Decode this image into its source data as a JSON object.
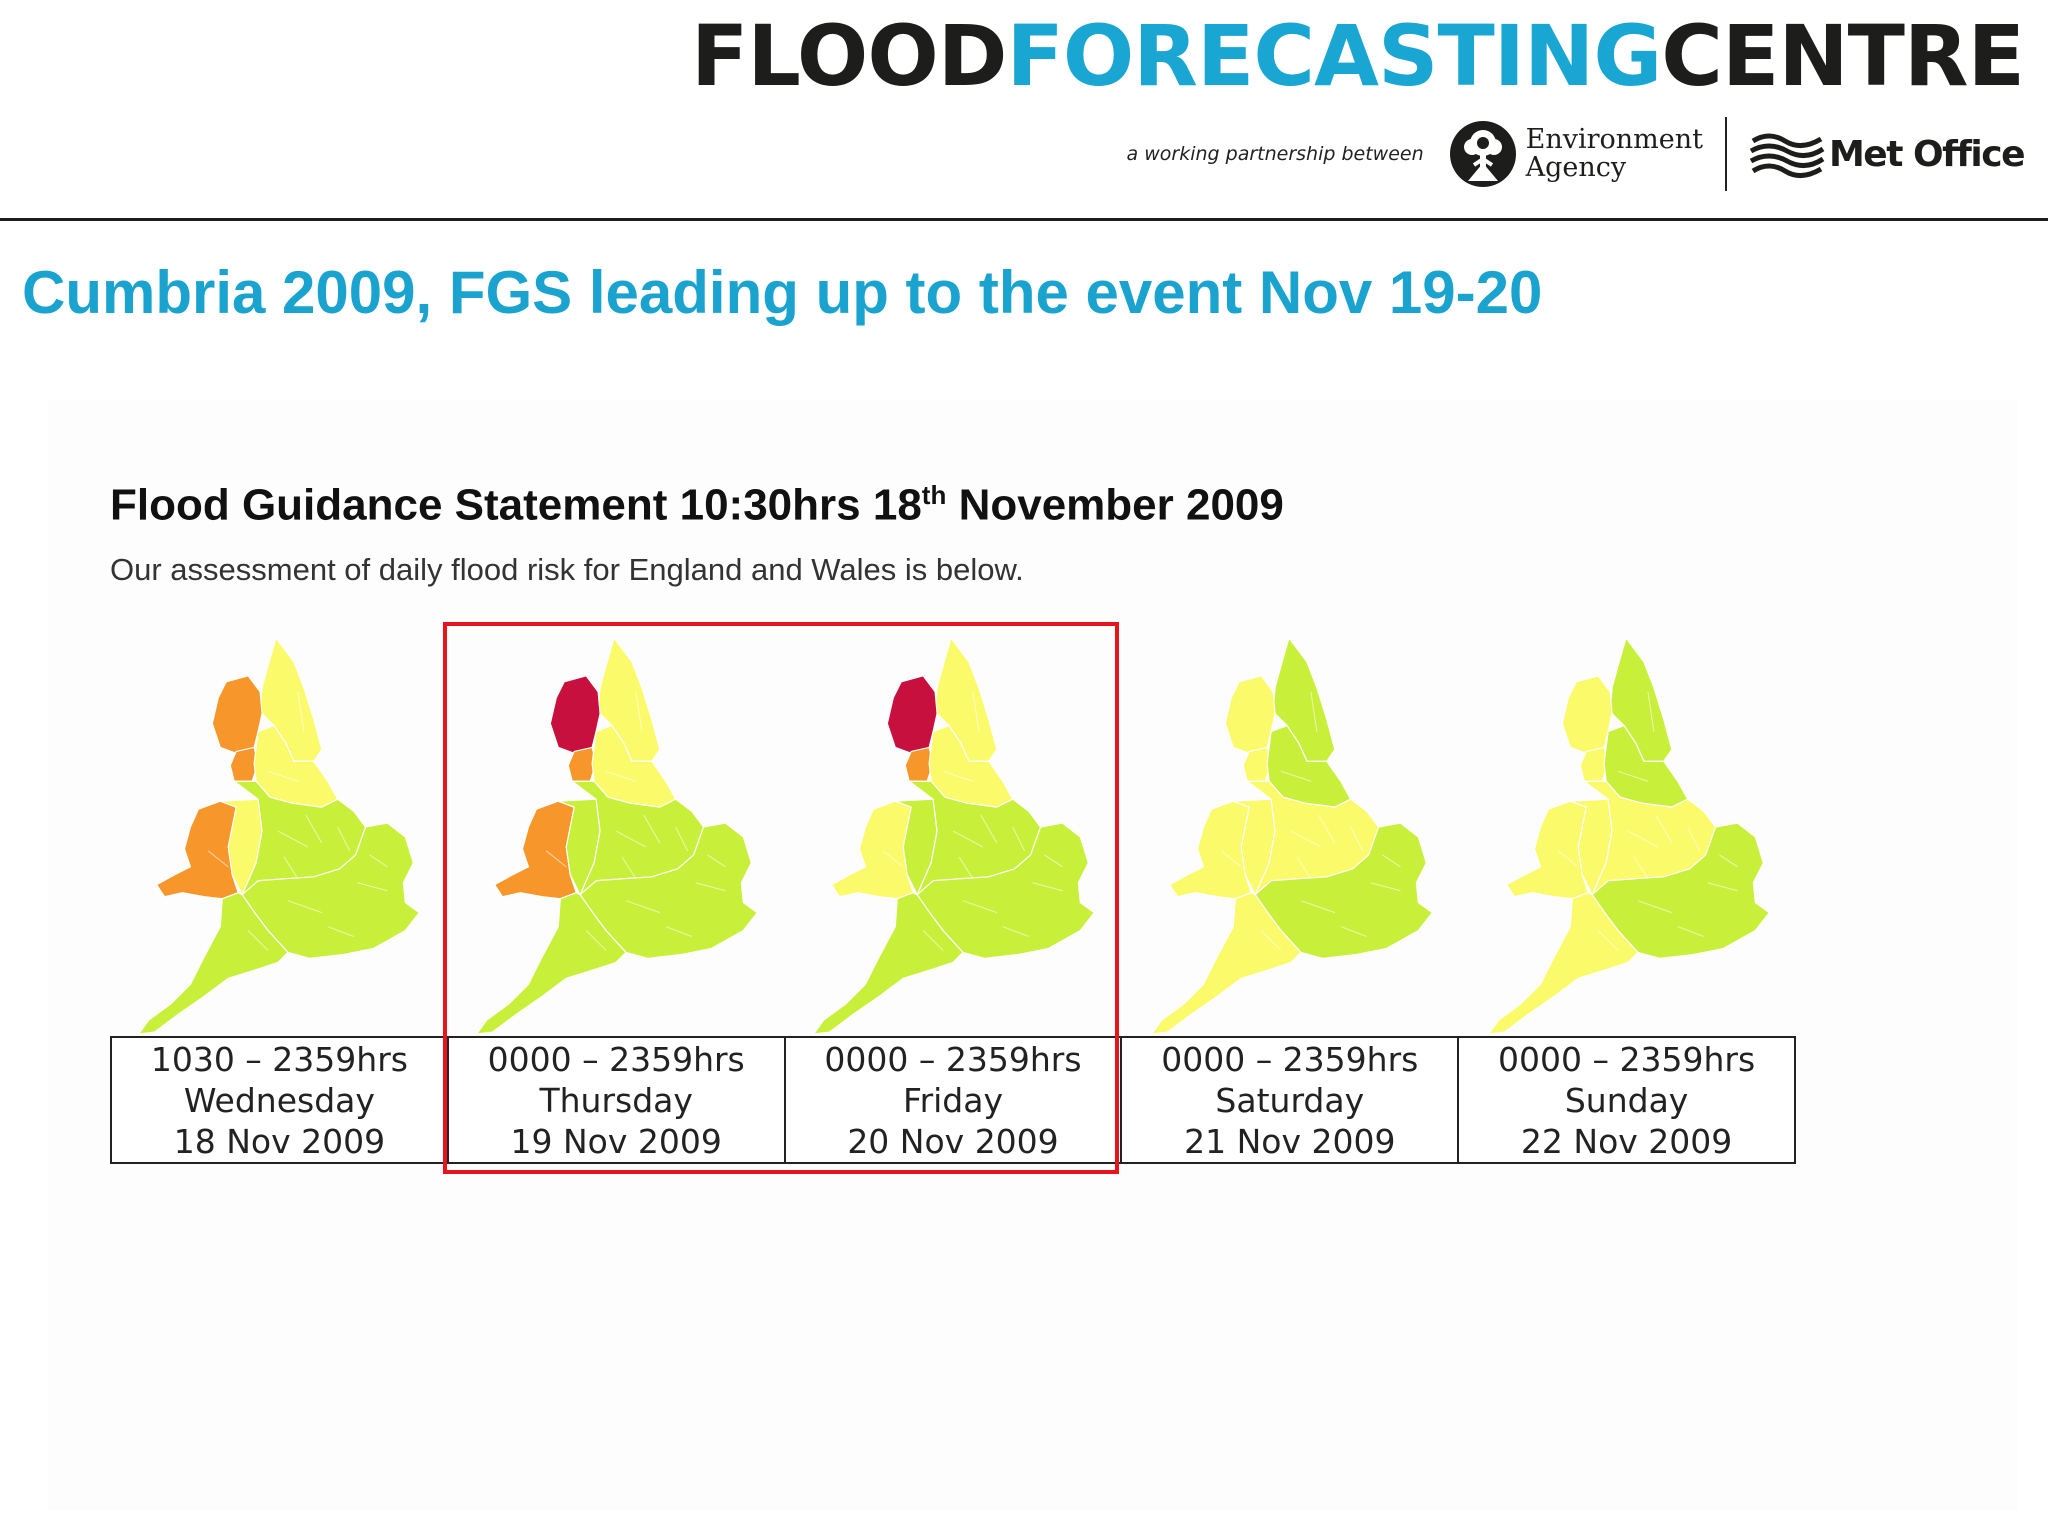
{
  "header": {
    "brand": {
      "part1": "FLOOD",
      "part2": "FORECASTING",
      "part3": "CENTRE"
    },
    "tagline": "a working partnership between",
    "environment_agency": {
      "line1": "Environment",
      "line2": "Agency"
    },
    "met_office": "Met Office"
  },
  "page_title": "Cumbria 2009, FGS leading up to the event Nov 19-20",
  "statement": {
    "title_prefix": "Flood Guidance Statement 10:30hrs 18",
    "title_sup": "th",
    "title_suffix": " November 2009",
    "subtitle": "Our assessment of daily flood risk for England and Wales is below."
  },
  "risk_colors": {
    "very_low": "#c8f03a",
    "low": "#fafa6a",
    "medium": "#f7962a",
    "high": "#c8103e"
  },
  "days": [
    {
      "time": "1030 – 2359hrs",
      "weekday": "Wednesday",
      "date": "18 Nov 2009",
      "regions": {
        "north_west": "medium",
        "north_east": "low",
        "yorkshire": "low",
        "wales": "medium",
        "wales_east": "low",
        "midlands": "very_low",
        "south": "very_low",
        "south_west": "very_low"
      }
    },
    {
      "time": "0000 – 2359hrs",
      "weekday": "Thursday",
      "date": "19 Nov 2009",
      "regions": {
        "north_west": "high",
        "lancashire": "medium",
        "north_east": "low",
        "yorkshire": "low",
        "wales": "medium",
        "wales_east": "very_low",
        "midlands": "very_low",
        "south": "very_low",
        "south_west": "very_low"
      }
    },
    {
      "time": "0000 – 2359hrs",
      "weekday": "Friday",
      "date": "20 Nov 2009",
      "regions": {
        "north_west": "high",
        "lancashire": "medium",
        "north_east": "low",
        "yorkshire": "low",
        "wales": "low",
        "midlands": "very_low",
        "south": "very_low",
        "south_west": "very_low"
      }
    },
    {
      "time": "0000 – 2359hrs",
      "weekday": "Saturday",
      "date": "21 Nov 2009",
      "regions": {
        "north_west": "low",
        "north_east": "very_low",
        "yorkshire": "very_low",
        "wales": "low",
        "midlands": "low",
        "south": "very_low",
        "south_west": "low"
      }
    },
    {
      "time": "0000 – 2359hrs",
      "weekday": "Sunday",
      "date": "22 Nov 2009",
      "regions": {
        "north_west": "low",
        "north_east": "very_low",
        "yorkshire": "very_low",
        "wales": "low",
        "midlands": "low",
        "south": "very_low",
        "south_west": "low"
      }
    }
  ],
  "highlight": {
    "color": "#e8141c",
    "days": [
      1,
      2
    ]
  }
}
